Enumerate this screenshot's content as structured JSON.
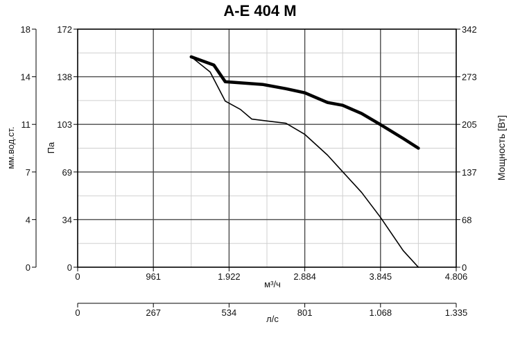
{
  "chart_data": {
    "type": "line",
    "title": "A-E 404 M",
    "x_label": "м³/ч",
    "x_ticks": [
      "0",
      "961",
      "1.922",
      "2.884",
      "3.845",
      "4.806"
    ],
    "x_range": [
      0,
      4806
    ],
    "x2_label": "л/с",
    "x2_ticks": [
      "0",
      "267",
      "534",
      "801",
      "1.068",
      "1.335"
    ],
    "y_label": "Па",
    "y_ticks": [
      "0",
      "34",
      "69",
      "103",
      "138",
      "172"
    ],
    "y_range": [
      0,
      172
    ],
    "y_left_label": "мм.вод.ст.",
    "y_left_ticks": [
      "0",
      "4",
      "7",
      "11",
      "14",
      "18"
    ],
    "y_right_label": "Мощность [Вт]",
    "y_right_ticks": [
      "0",
      "68",
      "137",
      "205",
      "273",
      "342"
    ],
    "grid": true,
    "series": [
      {
        "style": "thick",
        "x": [
          1442,
          1730,
          1874,
          2115,
          2355,
          2644,
          2884,
          3172,
          3364,
          3605,
          3845,
          4133,
          4325
        ],
        "y": [
          152,
          146,
          134,
          133,
          132,
          129,
          126,
          119,
          117,
          111,
          103,
          93,
          86
        ]
      },
      {
        "style": "thin",
        "x": [
          1442,
          1682,
          1874,
          2067,
          2211,
          2644,
          2884,
          3172,
          3364,
          3605,
          3845,
          4133,
          4325
        ],
        "y": [
          152,
          141,
          120,
          114,
          107,
          104,
          96,
          81,
          69,
          54,
          36,
          12,
          0
        ]
      }
    ]
  }
}
